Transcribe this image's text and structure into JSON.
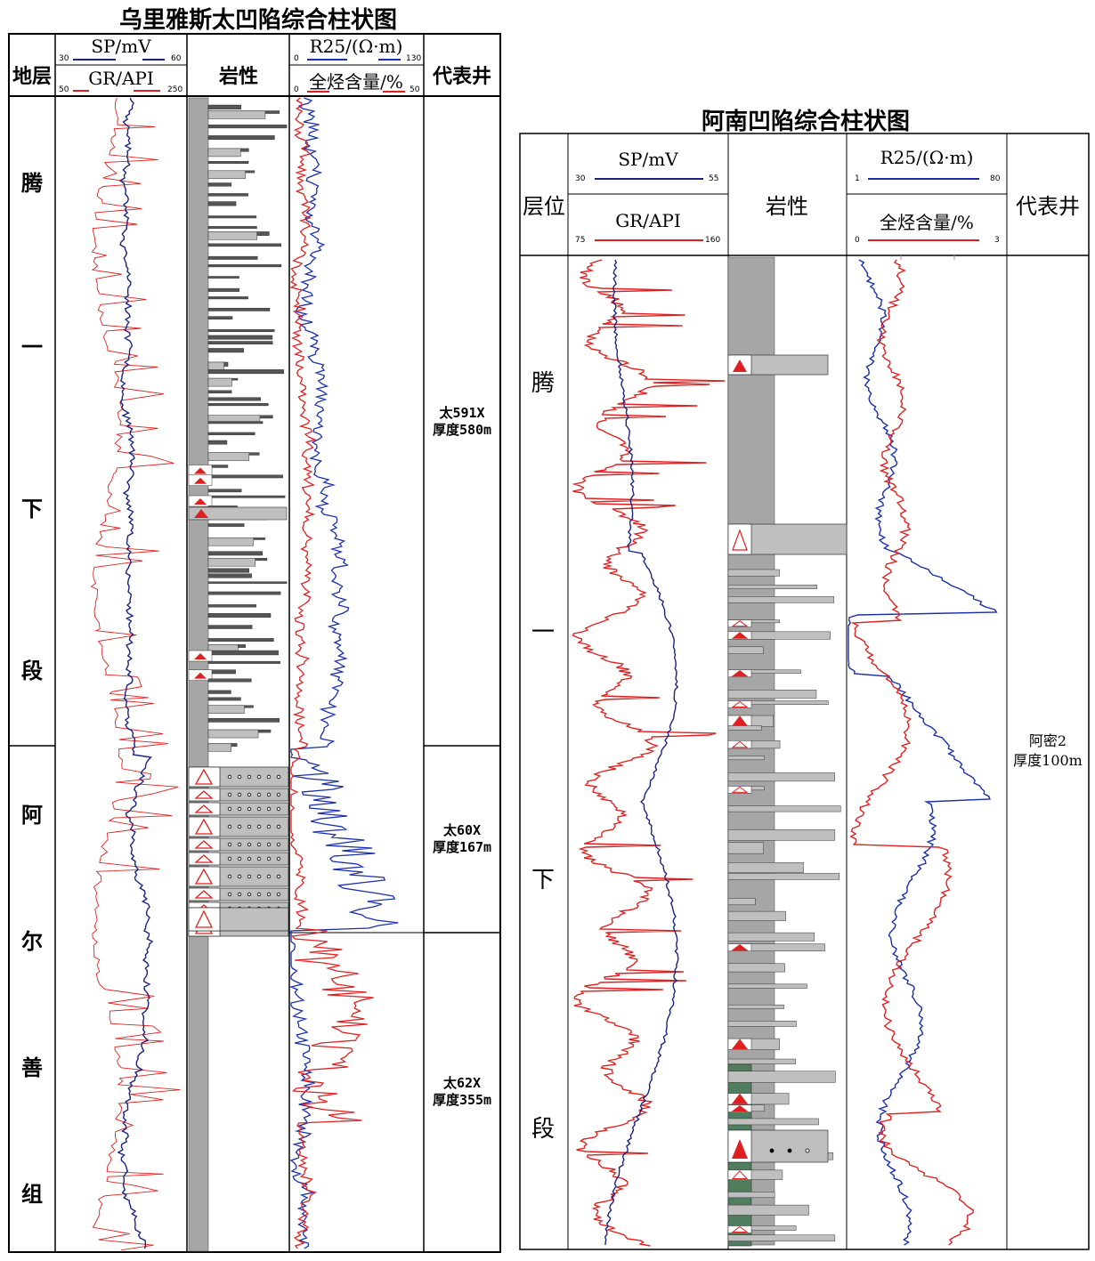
{
  "left_panel": {
    "title": "乌里雅斯太凹陷综合柱状图",
    "headers": {
      "stratum": "地层",
      "lithology": "岩性",
      "rep_well": "代表井",
      "sp_label": "SP/mV",
      "sp_min": "30",
      "sp_max": "60",
      "gr_label": "GR/API",
      "gr_min": "50",
      "gr_max": "250",
      "r25_label": "R25/(Ω·m)",
      "r25_min": "0",
      "r25_max": "130",
      "hc_label": "全烃含量/%",
      "hc_min": "0",
      "hc_max": "50"
    },
    "stratum_chars": [
      "腾",
      "一",
      "下",
      "段",
      "阿",
      "尔",
      "善",
      "组"
    ],
    "wells": [
      {
        "line1": "太591X",
        "line2": "厚度580m"
      },
      {
        "line1": "太60X",
        "line2": "厚度167m"
      },
      {
        "line1": "太62X",
        "line2": "厚度355m"
      }
    ]
  },
  "right_panel": {
    "title": "阿南凹陷综合柱状图",
    "headers": {
      "stratum": "层位",
      "lithology": "岩性",
      "rep_well": "代表井",
      "sp_label": "SP/mV",
      "sp_min": "30",
      "sp_max": "55",
      "gr_label": "GR/API",
      "gr_min": "75",
      "gr_max": "160",
      "r25_label": "R25/(Ω·m)",
      "r25_min": "1",
      "r25_max": "80",
      "hc_label": "全烃含量/%",
      "hc_min": "0",
      "hc_max": "3"
    },
    "stratum_chars": [
      "腾",
      "一",
      "下",
      "段"
    ],
    "wells": [
      {
        "line1": "阿密2",
        "line2": "厚度100m"
      }
    ]
  },
  "colors": {
    "sp": "#1a237e",
    "gr": "#e02020",
    "r25": "#1a2ea8",
    "hc": "#e02020",
    "shale": "#a6a6a6",
    "sand": "#bfbfbf",
    "green": "#4f7d5e"
  }
}
